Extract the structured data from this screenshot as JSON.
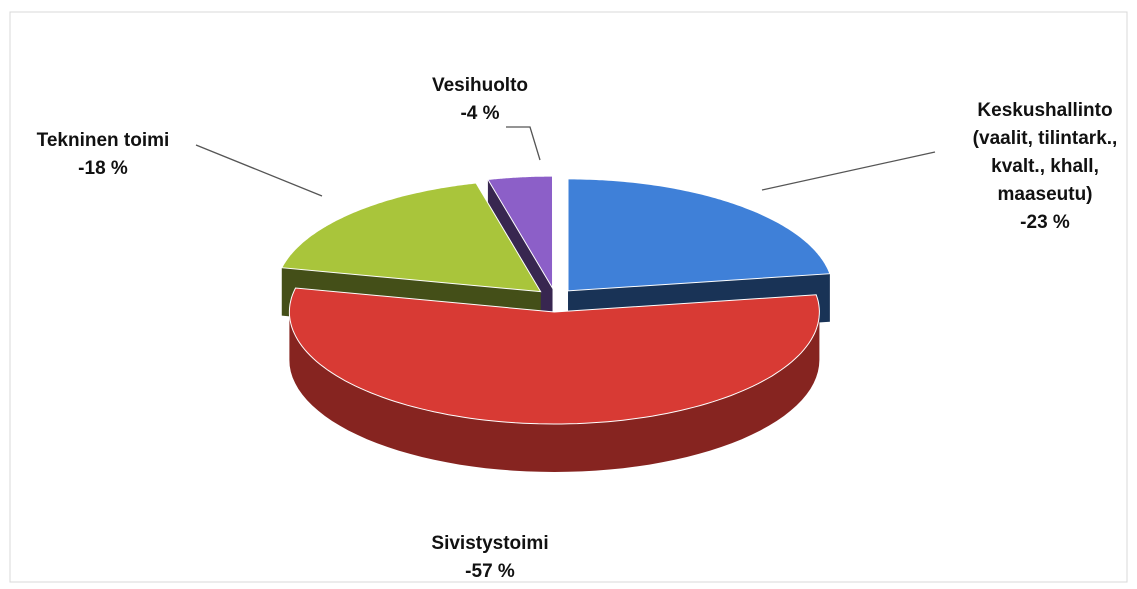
{
  "chart_data": {
    "type": "pie",
    "categories": [
      "Keskushallinto (vaalit, tilintark., kvalt., khall, maaseutu)",
      "Sivistystoimi",
      "Tekninen toimi",
      "Vesihuolto"
    ],
    "values": [
      -23,
      -57,
      -18,
      -4
    ],
    "value_labels": [
      "-23 %",
      "-57 %",
      "-18 %",
      "-4 %"
    ],
    "colors": [
      "#3f80d8",
      "#d83a34",
      "#a9c53b",
      "#8c5fc8"
    ]
  }
}
